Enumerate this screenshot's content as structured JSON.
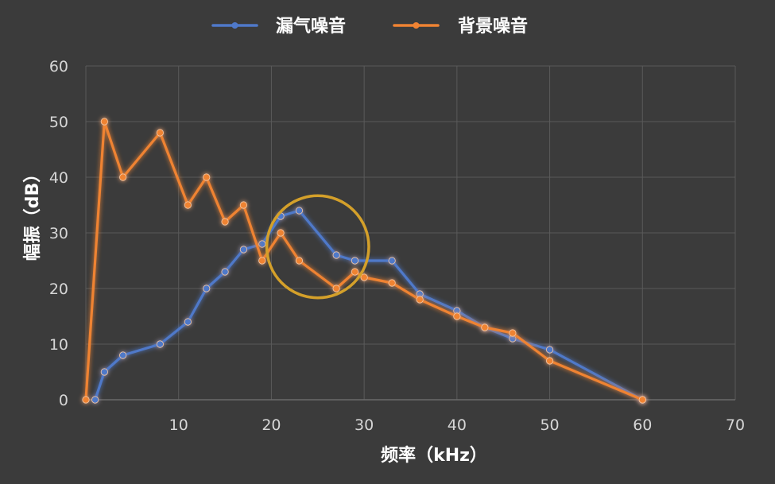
{
  "chart_data": {
    "type": "line",
    "title": "",
    "xlabel": "频率（kHz）",
    "ylabel": "幅振（dB）",
    "xlim": [
      0,
      70
    ],
    "ylim": [
      0,
      60
    ],
    "x_ticks": [
      10,
      20,
      30,
      40,
      50,
      60,
      70
    ],
    "y_ticks": [
      0,
      10,
      20,
      30,
      40,
      50,
      60
    ],
    "grid": true,
    "legend": "top-center",
    "series": [
      {
        "name": "漏气噪音",
        "color": "#4f79c9",
        "points": [
          [
            1,
            0
          ],
          [
            2,
            5
          ],
          [
            4,
            8
          ],
          [
            8,
            10
          ],
          [
            11,
            14
          ],
          [
            13,
            20
          ],
          [
            15,
            23
          ],
          [
            17,
            27
          ],
          [
            19,
            28
          ],
          [
            21,
            33
          ],
          [
            23,
            34
          ],
          [
            27,
            26
          ],
          [
            29,
            25
          ],
          [
            33,
            25
          ],
          [
            36,
            19
          ],
          [
            40,
            16
          ],
          [
            43,
            13
          ],
          [
            46,
            11
          ],
          [
            50,
            9
          ],
          [
            60,
            0
          ]
        ]
      },
      {
        "name": "背景噪音",
        "color": "#ef8333",
        "points": [
          [
            0,
            0
          ],
          [
            2,
            50
          ],
          [
            4,
            40
          ],
          [
            8,
            48
          ],
          [
            11,
            35
          ],
          [
            13,
            40
          ],
          [
            15,
            32
          ],
          [
            17,
            35
          ],
          [
            19,
            25
          ],
          [
            21,
            30
          ],
          [
            23,
            25
          ],
          [
            27,
            20
          ],
          [
            29,
            23
          ],
          [
            30,
            22
          ],
          [
            33,
            21
          ],
          [
            36,
            18
          ],
          [
            40,
            15
          ],
          [
            43,
            13
          ],
          [
            46,
            12
          ],
          [
            50,
            7
          ],
          [
            60,
            0
          ]
        ]
      }
    ],
    "annotations": [
      {
        "type": "circle",
        "center": [
          25,
          27.5
        ],
        "radius_x": 5.5,
        "color": "#d4a02a"
      }
    ]
  }
}
